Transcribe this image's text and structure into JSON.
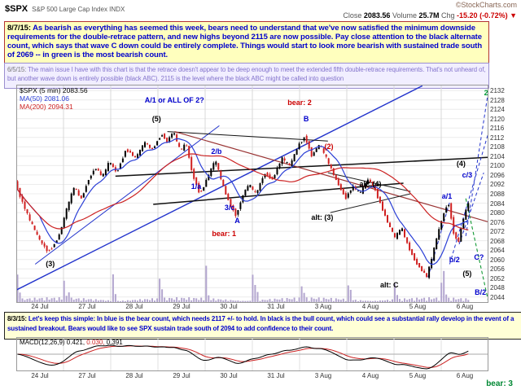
{
  "header": {
    "symbol": "$SPX",
    "name": "S&P 500 Large Cap Index INDX",
    "watermark": "©StockCharts.com",
    "close_label": "Close",
    "close": "2083.56",
    "volume_label": "Volume",
    "volume": "25.7M",
    "chg_label": "Chg",
    "chg": "-15.20 (-0.72%) ▼"
  },
  "notes": {
    "n1_date": "8/7/15:",
    "n1_body": " As bearish as everything has seemed this week, bears need to understand that we've now satisfied the minimum downside requirements for the double-retrace pattern, and new highs beyond 2115 are now possible. Pay close attention to the black alternate count, which says that wave C down could be entirely complete.  Things would start to look more bearish with sustained trade south of 2069 -- in green is the most bearish count.",
    "n2_date": "6/5/15:",
    "n2_body": " The main issue I have with this chart is that the retrace doesn't appear to be deep enough to meet the extended fifth double-retrace requirements. That's not unheard of, but another wave down is entirely possible (black ABC).  2115 is the level where the black ABC might be called into question",
    "n3_date": "8/3/15:",
    "n3_body": " Let's keep this simple:  In blue is the bear count, which needs 2117 +/- to hold.  In black is the bull count, which could see a substantial rally develop in the event of a sustained breakout.  Bears would like to see SPX sustain trade south of 2094 to add confidence to their count."
  },
  "legend": {
    "main": "$SPX (5 min) 2083.56",
    "ma50": "MA(50) 2081.06",
    "ma200": "MA(200) 2094.31"
  },
  "macd_legend": {
    "name": "MACD(12,26,9)",
    "v1": " 0.421,",
    "v2": " 0.030,",
    "v3": " 0.391"
  },
  "footer_label": "bear: 3",
  "chart_data": {
    "type": "candlestick",
    "symbol": "$SPX",
    "timeframe": "5 min",
    "last_close": 2083.56,
    "change": -15.2,
    "volume": "25.7M",
    "price_axis": {
      "min": 2044,
      "max": 2132,
      "step": 4
    },
    "sessions": [
      "24 Jul",
      "27 Jul",
      "28 Jul",
      "29 Jul",
      "30 Jul",
      "31 Jul",
      "3 Aug",
      "4 Aug",
      "5 Aug",
      "6 Aug"
    ],
    "price_path": [
      [
        0.0,
        2093
      ],
      [
        0.012,
        2086
      ],
      [
        0.03,
        2077
      ],
      [
        0.05,
        2069
      ],
      [
        0.07,
        2063.5
      ],
      [
        0.082,
        2066
      ],
      [
        0.095,
        2071
      ],
      [
        0.11,
        2082
      ],
      [
        0.125,
        2091
      ],
      [
        0.14,
        2086
      ],
      [
        0.155,
        2094
      ],
      [
        0.17,
        2099
      ],
      [
        0.185,
        2095
      ],
      [
        0.2,
        2102
      ],
      [
        0.215,
        2097
      ],
      [
        0.235,
        2107
      ],
      [
        0.255,
        2103
      ],
      [
        0.275,
        2110
      ],
      [
        0.29,
        2107
      ],
      [
        0.31,
        2113.5
      ],
      [
        0.322,
        2110
      ],
      [
        0.335,
        2114.5
      ],
      [
        0.35,
        2106
      ],
      [
        0.362,
        2110
      ],
      [
        0.375,
        2097
      ],
      [
        0.392,
        2087.5
      ],
      [
        0.408,
        2095
      ],
      [
        0.424,
        2102.5
      ],
      [
        0.438,
        2093
      ],
      [
        0.452,
        2085
      ],
      [
        0.468,
        2078.5
      ],
      [
        0.482,
        2087
      ],
      [
        0.495,
        2092
      ],
      [
        0.51,
        2088
      ],
      [
        0.528,
        2097
      ],
      [
        0.545,
        2094
      ],
      [
        0.565,
        2103
      ],
      [
        0.582,
        2100
      ],
      [
        0.6,
        2109
      ],
      [
        0.614,
        2112.5
      ],
      [
        0.628,
        2104
      ],
      [
        0.645,
        2109
      ],
      [
        0.662,
        2102
      ],
      [
        0.68,
        2094
      ],
      [
        0.7,
        2086
      ],
      [
        0.715,
        2091
      ],
      [
        0.73,
        2088
      ],
      [
        0.748,
        2094.5
      ],
      [
        0.762,
        2090
      ],
      [
        0.775,
        2083
      ],
      [
        0.79,
        2075
      ],
      [
        0.805,
        2069
      ],
      [
        0.818,
        2074
      ],
      [
        0.832,
        2066
      ],
      [
        0.848,
        2059
      ],
      [
        0.862,
        2055
      ],
      [
        0.872,
        2052.5
      ],
      [
        0.882,
        2060
      ],
      [
        0.895,
        2071
      ],
      [
        0.908,
        2080
      ],
      [
        0.918,
        2084.5
      ],
      [
        0.928,
        2072
      ],
      [
        0.938,
        2066.5
      ],
      [
        0.948,
        2076
      ],
      [
        0.955,
        2081
      ],
      [
        0.96,
        2083.5
      ]
    ],
    "trend_lines": [
      {
        "x1": 0.0,
        "p1": 2047,
        "x2": 0.86,
        "p2": 2134,
        "c": "#2233cc",
        "w": 1.4
      },
      {
        "x1": 0.04,
        "p1": 2058,
        "x2": 0.43,
        "p2": 2117,
        "c": "#2233cc",
        "w": 1.0
      },
      {
        "x1": 0.32,
        "p1": 2114.5,
        "x2": 0.66,
        "p2": 2110.5,
        "c": "#111111",
        "w": 1.0
      },
      {
        "x1": 0.21,
        "p1": 2095.5,
        "x2": 1.0,
        "p2": 2103.5,
        "c": "#111111",
        "w": 1.5
      },
      {
        "x1": 0.29,
        "p1": 2083.5,
        "x2": 0.82,
        "p2": 2092.5,
        "c": "#111111",
        "w": 1.5
      },
      {
        "x1": 0.335,
        "p1": 2114.5,
        "x2": 1.0,
        "p2": 2076,
        "c": "#993333",
        "w": 1.2
      },
      {
        "x1": 0.66,
        "p1": 2097,
        "x2": 0.835,
        "p2": 2089,
        "c": "#222222",
        "w": 1.0
      },
      {
        "x1": 0.665,
        "p1": 2080,
        "x2": 0.835,
        "p2": 2088,
        "c": "#222222",
        "w": 1.0
      },
      {
        "x1": 0.938,
        "p1": 2066.5,
        "x2": 0.99,
        "p2": 2097,
        "c": "#2233cc",
        "w": 1.0,
        "d": "4 3"
      },
      {
        "x1": 0.918,
        "p1": 2058,
        "x2": 1.0,
        "p2": 2114,
        "c": "#2233cc",
        "w": 1.0,
        "d": "4 3"
      },
      {
        "x1": 0.952,
        "p1": 2070,
        "x2": 1.0,
        "p2": 2132,
        "c": "#2233cc",
        "w": 1.0,
        "d": "4 3"
      },
      {
        "x1": 0.872,
        "p1": 2052.5,
        "x2": 0.918,
        "p2": 2084.5,
        "c": "#2233cc",
        "w": 1.0,
        "d": "4 3"
      },
      {
        "x1": 0.952,
        "p1": 2086,
        "x2": 1.0,
        "p2": 2042,
        "c": "#119933",
        "w": 1.1,
        "d": "4 3"
      }
    ],
    "wave_labels": [
      {
        "text": "(5)",
        "x": 0.297,
        "p": 2120,
        "color": "black"
      },
      {
        "text": "A/1 or ALL OF 2?",
        "x": 0.335,
        "p": 2128,
        "color": "blue"
      },
      {
        "text": "bear: 2",
        "x": 0.6,
        "p": 2127,
        "color": "red"
      },
      {
        "text": "B",
        "x": 0.614,
        "p": 2120,
        "color": "blue"
      },
      {
        "text": "(2)",
        "x": 0.662,
        "p": 2108,
        "color": "red"
      },
      {
        "text": "2/b",
        "x": 0.424,
        "p": 2106,
        "color": "blue"
      },
      {
        "text": "1/a",
        "x": 0.381,
        "p": 2091,
        "color": "blue"
      },
      {
        "text": "alt: (4)",
        "x": 0.75,
        "p": 2092,
        "color": "black"
      },
      {
        "text": "(4)",
        "x": 0.942,
        "p": 2101,
        "color": "black"
      },
      {
        "text": "c/3",
        "x": 0.955,
        "p": 2096,
        "color": "blue"
      },
      {
        "text": "a/1",
        "x": 0.912,
        "p": 2087,
        "color": "blue"
      },
      {
        "text": "3/c",
        "x": 0.452,
        "p": 2082,
        "color": "blue"
      },
      {
        "text": "A",
        "x": 0.468,
        "p": 2076.5,
        "color": "blue"
      },
      {
        "text": "bear: 1",
        "x": 0.44,
        "p": 2071,
        "color": "red"
      },
      {
        "text": "alt: (3)",
        "x": 0.648,
        "p": 2078,
        "color": "black"
      },
      {
        "text": "b/2",
        "x": 0.928,
        "p": 2060,
        "color": "blue"
      },
      {
        "text": "alt: C",
        "x": 0.79,
        "p": 2049,
        "color": "black"
      },
      {
        "text": "(5)",
        "x": 0.955,
        "p": 2054,
        "color": "black"
      },
      {
        "text": "C?",
        "x": 0.98,
        "p": 2061,
        "color": "blue"
      },
      {
        "text": "B/2",
        "x": 0.983,
        "p": 2046,
        "color": "blue"
      },
      {
        "text": "(3)",
        "x": 0.072,
        "p": 2058,
        "color": "black"
      },
      {
        "text": "2",
        "x": 0.995,
        "p": 2131,
        "color": "green"
      }
    ],
    "macd": {
      "label": "MACD(12,26,9)",
      "values": "0.421, 0.030, 0.391"
    }
  }
}
